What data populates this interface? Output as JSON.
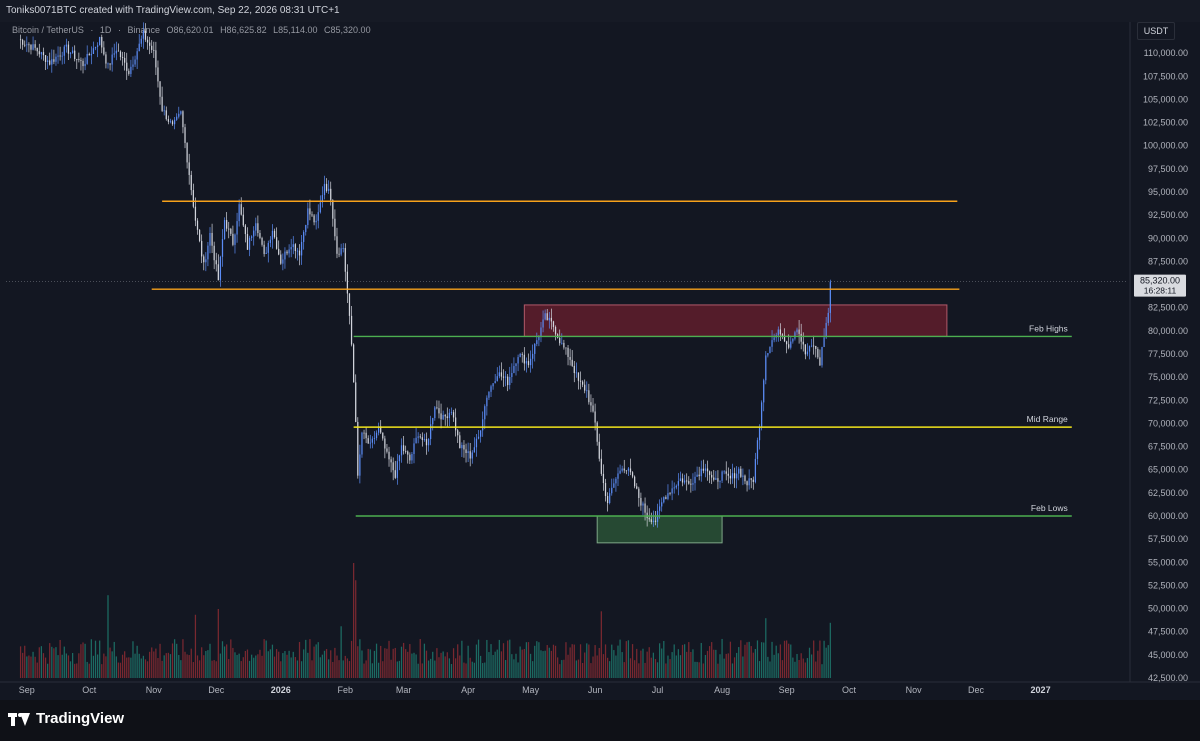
{
  "header": {
    "attribution": "Toniks0071BTC created with TradingView.com, Sep 22, 2026 08:31 UTC+1"
  },
  "symbol_bar": {
    "name": "Bitcoin / TetherUS",
    "interval": "1D",
    "exchange": "Binance",
    "open": "O86,620.01",
    "high": "H86,625.82",
    "low": "L85,114.00",
    "close": "C85,320.00"
  },
  "price_scale": {
    "currency": "USDT",
    "current_price": "85,320.00",
    "countdown": "16:28:11"
  },
  "brand": {
    "name": "TradingView"
  },
  "colors": {
    "background": "#131722",
    "up_candle": "#5b8cf5",
    "down_candle": "#d1d4dc",
    "orange_level": "#f7a21b",
    "green_level": "#4caf50",
    "yellow_level": "#f2e51c",
    "supply_zone": "#6b1f2e",
    "demand_zone": "#2e5b3a"
  },
  "chart_data": {
    "type": "candlestick",
    "y_axis": {
      "min": 42500,
      "max": 112500,
      "tick_labels": [
        "110,000.00",
        "107,500.00",
        "105,000.00",
        "102,500.00",
        "100,000.00",
        "97,500.00",
        "95,000.00",
        "92,500.00",
        "90,000.00",
        "87,500.00",
        "82,500.00",
        "80,000.00",
        "77,500.00",
        "75,000.00",
        "72,500.00",
        "70,000.00",
        "67,500.00",
        "65,000.00",
        "62,500.00",
        "60,000.00",
        "57,500.00",
        "55,000.00",
        "52,500.00",
        "50,000.00",
        "47,500.00",
        "45,000.00",
        "42,500.00"
      ],
      "tick_values": [
        110000,
        107500,
        105000,
        102500,
        100000,
        97500,
        95000,
        92500,
        90000,
        87500,
        82500,
        80000,
        77500,
        75000,
        72500,
        70000,
        67500,
        65000,
        62500,
        60000,
        57500,
        55000,
        52500,
        50000,
        47500,
        45000,
        42500
      ]
    },
    "x_axis": {
      "months": [
        {
          "label": "Sep",
          "date": "2025-09-01",
          "bold": false
        },
        {
          "label": "Oct",
          "date": "2025-10-01",
          "bold": false
        },
        {
          "label": "Nov",
          "date": "2025-11-01",
          "bold": false
        },
        {
          "label": "Dec",
          "date": "2025-12-01",
          "bold": false
        },
        {
          "label": "2026",
          "date": "2026-01-01",
          "bold": true
        },
        {
          "label": "Feb",
          "date": "2026-02-01",
          "bold": false
        },
        {
          "label": "Mar",
          "date": "2026-03-01",
          "bold": false
        },
        {
          "label": "Apr",
          "date": "2026-04-01",
          "bold": false
        },
        {
          "label": "May",
          "date": "2026-05-01",
          "bold": false
        },
        {
          "label": "Jun",
          "date": "2026-06-01",
          "bold": false
        },
        {
          "label": "Jul",
          "date": "2026-07-01",
          "bold": false
        },
        {
          "label": "Aug",
          "date": "2026-08-01",
          "bold": false
        },
        {
          "label": "Sep",
          "date": "2026-09-01",
          "bold": false
        },
        {
          "label": "Oct",
          "date": "2026-10-01",
          "bold": false
        },
        {
          "label": "Nov",
          "date": "2026-11-01",
          "bold": false
        },
        {
          "label": "Dec",
          "date": "2026-12-01",
          "bold": false
        },
        {
          "label": "2027",
          "date": "2027-01-01",
          "bold": true
        }
      ]
    },
    "price_path": [
      {
        "date": "2025-08-28",
        "price": 111500
      },
      {
        "date": "2025-09-05",
        "price": 110500
      },
      {
        "date": "2025-09-12",
        "price": 109000
      },
      {
        "date": "2025-09-20",
        "price": 110500
      },
      {
        "date": "2025-09-28",
        "price": 108800
      },
      {
        "date": "2025-10-06",
        "price": 111500
      },
      {
        "date": "2025-10-10",
        "price": 108500
      },
      {
        "date": "2025-10-14",
        "price": 110500
      },
      {
        "date": "2025-10-20",
        "price": 108000
      },
      {
        "date": "2025-10-27",
        "price": 112000
      },
      {
        "date": "2025-11-01",
        "price": 110000
      },
      {
        "date": "2025-11-05",
        "price": 104000
      },
      {
        "date": "2025-11-10",
        "price": 102000
      },
      {
        "date": "2025-11-14",
        "price": 103500
      },
      {
        "date": "2025-11-18",
        "price": 97000
      },
      {
        "date": "2025-11-21",
        "price": 92000
      },
      {
        "date": "2025-11-25",
        "price": 87000
      },
      {
        "date": "2025-11-28",
        "price": 90500
      },
      {
        "date": "2025-12-02",
        "price": 85500
      },
      {
        "date": "2025-12-05",
        "price": 92000
      },
      {
        "date": "2025-12-09",
        "price": 89500
      },
      {
        "date": "2025-12-12",
        "price": 93500
      },
      {
        "date": "2025-12-16",
        "price": 89000
      },
      {
        "date": "2025-12-20",
        "price": 92000
      },
      {
        "date": "2025-12-24",
        "price": 88000
      },
      {
        "date": "2025-12-28",
        "price": 91000
      },
      {
        "date": "2026-01-01",
        "price": 87500
      },
      {
        "date": "2026-01-06",
        "price": 89500
      },
      {
        "date": "2026-01-10",
        "price": 88500
      },
      {
        "date": "2026-01-14",
        "price": 93000
      },
      {
        "date": "2026-01-18",
        "price": 91500
      },
      {
        "date": "2026-01-22",
        "price": 96000
      },
      {
        "date": "2026-01-25",
        "price": 94500
      },
      {
        "date": "2026-01-28",
        "price": 88500
      },
      {
        "date": "2026-01-31",
        "price": 89000
      },
      {
        "date": "2026-02-02",
        "price": 84000
      },
      {
        "date": "2026-02-04",
        "price": 78500
      },
      {
        "date": "2026-02-06",
        "price": 70500
      },
      {
        "date": "2026-02-07",
        "price": 64000
      },
      {
        "date": "2026-02-09",
        "price": 69000
      },
      {
        "date": "2026-02-13",
        "price": 67500
      },
      {
        "date": "2026-02-17",
        "price": 69500
      },
      {
        "date": "2026-02-21",
        "price": 66500
      },
      {
        "date": "2026-02-25",
        "price": 64500
      },
      {
        "date": "2026-02-28",
        "price": 67500
      },
      {
        "date": "2026-03-04",
        "price": 66000
      },
      {
        "date": "2026-03-08",
        "price": 69000
      },
      {
        "date": "2026-03-12",
        "price": 67500
      },
      {
        "date": "2026-03-16",
        "price": 72000
      },
      {
        "date": "2026-03-20",
        "price": 70500
      },
      {
        "date": "2026-03-24",
        "price": 71500
      },
      {
        "date": "2026-03-28",
        "price": 67500
      },
      {
        "date": "2026-04-02",
        "price": 66500
      },
      {
        "date": "2026-04-06",
        "price": 68500
      },
      {
        "date": "2026-04-10",
        "price": 73000
      },
      {
        "date": "2026-04-15",
        "price": 75500
      },
      {
        "date": "2026-04-20",
        "price": 74500
      },
      {
        "date": "2026-04-25",
        "price": 77500
      },
      {
        "date": "2026-04-30",
        "price": 76500
      },
      {
        "date": "2026-05-04",
        "price": 79000
      },
      {
        "date": "2026-05-08",
        "price": 81500
      },
      {
        "date": "2026-05-12",
        "price": 80500
      },
      {
        "date": "2026-05-16",
        "price": 78500
      },
      {
        "date": "2026-05-20",
        "price": 77000
      },
      {
        "date": "2026-05-24",
        "price": 74500
      },
      {
        "date": "2026-05-28",
        "price": 73500
      },
      {
        "date": "2026-06-01",
        "price": 70000
      },
      {
        "date": "2026-06-04",
        "price": 64500
      },
      {
        "date": "2026-06-07",
        "price": 61500
      },
      {
        "date": "2026-06-10",
        "price": 63500
      },
      {
        "date": "2026-06-14",
        "price": 65500
      },
      {
        "date": "2026-06-18",
        "price": 64500
      },
      {
        "date": "2026-06-22",
        "price": 62000
      },
      {
        "date": "2026-06-26",
        "price": 60000
      },
      {
        "date": "2026-06-30",
        "price": 59500
      },
      {
        "date": "2026-07-04",
        "price": 62000
      },
      {
        "date": "2026-07-08",
        "price": 63000
      },
      {
        "date": "2026-07-12",
        "price": 64000
      },
      {
        "date": "2026-07-16",
        "price": 63500
      },
      {
        "date": "2026-07-20",
        "price": 64500
      },
      {
        "date": "2026-07-24",
        "price": 65500
      },
      {
        "date": "2026-07-28",
        "price": 63500
      },
      {
        "date": "2026-08-01",
        "price": 64500
      },
      {
        "date": "2026-08-05",
        "price": 64000
      },
      {
        "date": "2026-08-09",
        "price": 65000
      },
      {
        "date": "2026-08-13",
        "price": 63500
      },
      {
        "date": "2026-08-16",
        "price": 64000
      },
      {
        "date": "2026-08-19",
        "price": 70000
      },
      {
        "date": "2026-08-22",
        "price": 77500
      },
      {
        "date": "2026-08-25",
        "price": 79000
      },
      {
        "date": "2026-08-29",
        "price": 80000
      },
      {
        "date": "2026-09-02",
        "price": 78500
      },
      {
        "date": "2026-09-06",
        "price": 80500
      },
      {
        "date": "2026-09-10",
        "price": 77500
      },
      {
        "date": "2026-09-14",
        "price": 78500
      },
      {
        "date": "2026-09-17",
        "price": 76500
      },
      {
        "date": "2026-09-19",
        "price": 79500
      },
      {
        "date": "2026-09-21",
        "price": 82000
      },
      {
        "date": "2026-09-22",
        "price": 85320
      }
    ],
    "levels": [
      {
        "name": "orange-upper",
        "price": 94000,
        "color": "#f7a21b",
        "from": "2025-11-05",
        "to": "2026-11-22",
        "label": ""
      },
      {
        "name": "orange-lower",
        "price": 84500,
        "color": "#f7a21b",
        "from": "2025-10-31",
        "to": "2026-11-23",
        "label": ""
      },
      {
        "name": "feb-highs",
        "price": 79400,
        "color": "#4caf50",
        "from": "2026-02-05",
        "to": "2027-01-16",
        "label": "Feb Highs"
      },
      {
        "name": "mid-range",
        "price": 69600,
        "color": "#f2e51c",
        "from": "2026-02-05",
        "to": "2027-01-16",
        "label": "Mid Range"
      },
      {
        "name": "feb-lows",
        "price": 60000,
        "color": "#4caf50",
        "from": "2026-02-06",
        "to": "2027-01-16",
        "label": "Feb Lows"
      }
    ],
    "zones": [
      {
        "name": "supply-zone",
        "from": "2026-04-28",
        "to": "2026-11-17",
        "top": 82800,
        "bottom": 79400,
        "fill": "#6b1f2e",
        "stroke": "#b05a6a"
      },
      {
        "name": "demand-zone",
        "from": "2026-06-02",
        "to": "2026-08-01",
        "top": 60000,
        "bottom": 57100,
        "fill": "#2e5b3a",
        "stroke": "#7fa888"
      }
    ],
    "current_price": 85320,
    "last_date": "2026-09-22",
    "first_date": "2025-08-28",
    "volume_scale_max": 100,
    "volume_spikes": [
      {
        "date": "2026-02-05",
        "value": 100
      },
      {
        "date": "2026-02-06",
        "value": 85
      },
      {
        "date": "2026-01-30",
        "value": 45
      },
      {
        "date": "2025-11-21",
        "value": 55
      },
      {
        "date": "2025-12-02",
        "value": 60
      },
      {
        "date": "2025-10-10",
        "value": 72
      },
      {
        "date": "2026-06-04",
        "value": 58
      },
      {
        "date": "2026-08-22",
        "value": 52
      },
      {
        "date": "2026-09-22",
        "value": 48
      }
    ]
  }
}
